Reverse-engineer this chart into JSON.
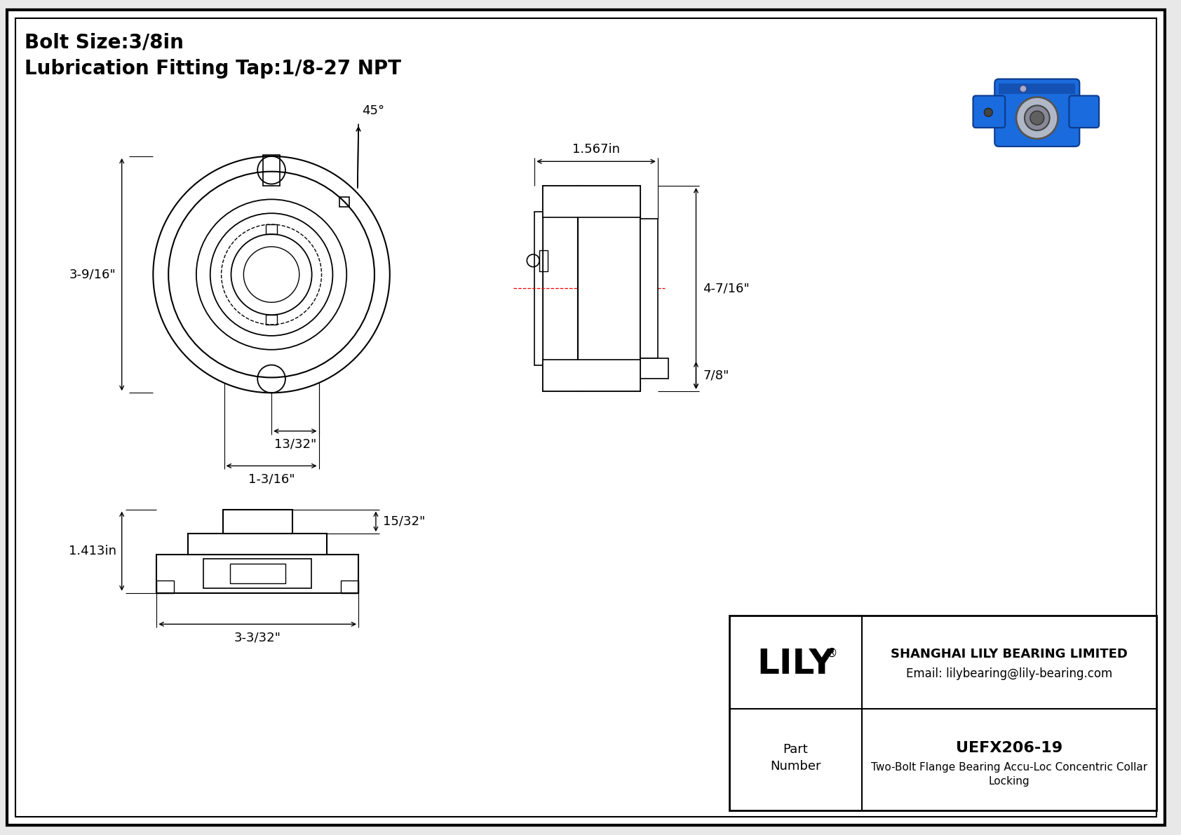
{
  "bg_color": "#e8e8e8",
  "drawing_bg": "#ffffff",
  "line_color": "#000000",
  "red_color": "#ff0000",
  "title_line1": "Bolt Size:3/8in",
  "title_line2": "Lubrication Fitting Tap:1/8-27 NPT",
  "company": "SHANGHAI LILY BEARING LIMITED",
  "email": "Email: lilybearing@lily-bearing.com",
  "brand_reg": "®",
  "part_number": "UEFX206-19",
  "dim_45": "45°",
  "dim_3_9_16": "3-9/16\"",
  "dim_13_32": "13/32\"",
  "dim_1_3_16": "1-3/16\"",
  "dim_1567": "1.567in",
  "dim_4_7_16": "4-7/16\"",
  "dim_7_8": "7/8\"",
  "dim_1413": "1.413in",
  "dim_15_32": "15/32\"",
  "dim_3_3_32": "3-3/32\""
}
